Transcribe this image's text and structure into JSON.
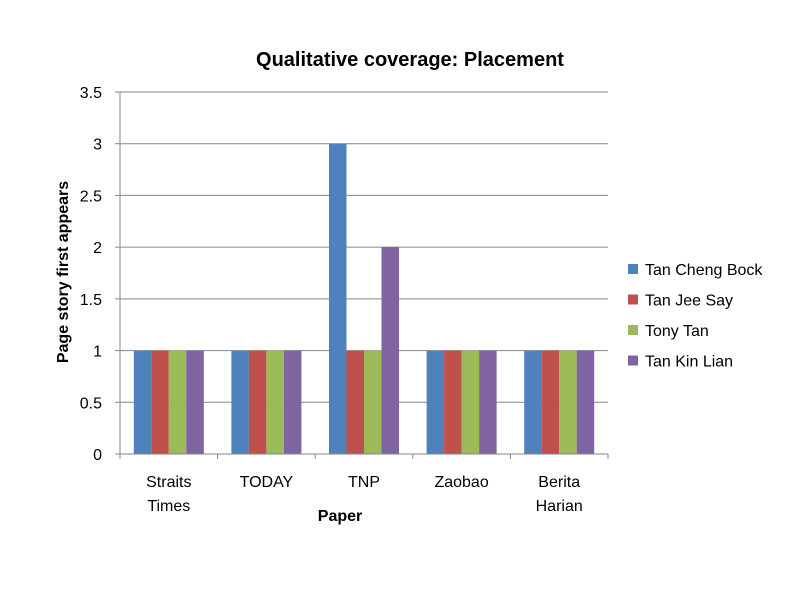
{
  "chart_data": {
    "type": "bar",
    "title": "Qualitative coverage: Placement",
    "xlabel": "Paper",
    "ylabel": "Page story first appears",
    "categories": [
      [
        "Straits",
        "Times"
      ],
      [
        "TODAY"
      ],
      [
        "TNP"
      ],
      [
        "Zaobao"
      ],
      [
        "Berita",
        "Harian"
      ]
    ],
    "series": [
      {
        "name": "Tan Cheng Bock",
        "color": "#4F81BD",
        "values": [
          1,
          1,
          3,
          1,
          1
        ]
      },
      {
        "name": "Tan Jee Say",
        "color": "#C0504D",
        "values": [
          1,
          1,
          1,
          1,
          1
        ]
      },
      {
        "name": "Tony Tan",
        "color": "#9BBB59",
        "values": [
          1,
          1,
          1,
          1,
          1
        ]
      },
      {
        "name": "Tan Kin Lian",
        "color": "#8064A2",
        "values": [
          1,
          1,
          2,
          1,
          1
        ]
      }
    ],
    "ylim": [
      0,
      3.5
    ],
    "yticks": [
      "0",
      "0.5",
      "1",
      "1.5",
      "2",
      "2.5",
      "3",
      "3.5"
    ],
    "grid": true,
    "legend_position": "right"
  }
}
